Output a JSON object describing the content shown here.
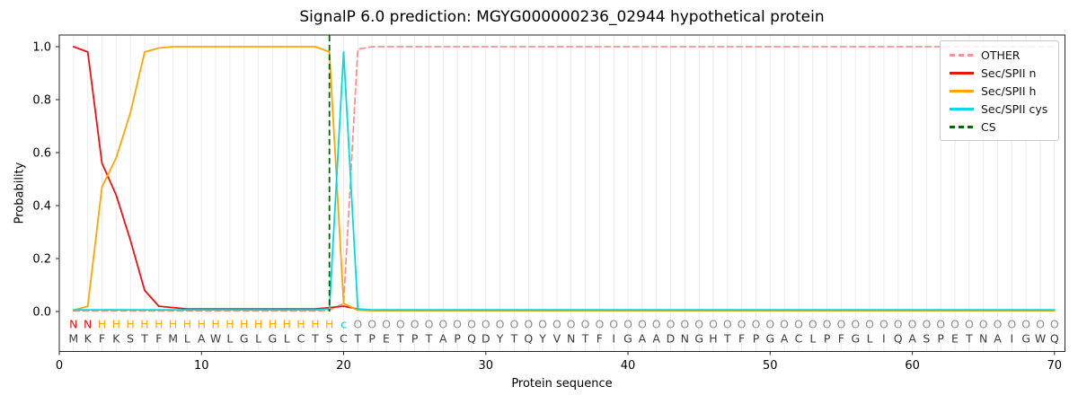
{
  "title": "SignalP 6.0 prediction: MGYG000000236_02944 hypothetical protein",
  "x_axis": {
    "label": "Protein sequence",
    "ticks": [
      0,
      10,
      20,
      30,
      40,
      50,
      60,
      70
    ]
  },
  "y_axis": {
    "label": "Probability",
    "ticks": [
      "0.0",
      "0.2",
      "0.4",
      "0.6",
      "0.8",
      "1.0"
    ]
  },
  "sequence": "MKFKSTFMLAWLGLGLCTSCTPETPTAPQDYTQYVNTFIGAADNGHTFPGACLPFGLIQASPETNAIGWQ",
  "residue_labels": "NNHHHHHHHHHHHHHHHHHcOOOOOOOOOOOOOOOOOOOOOOOOOOOOOOOOOOOOOOOOOOOOOOOOOO",
  "label_colors": {
    "N": "#ee1111",
    "H": "#ffa500",
    "c": "#00cdd6",
    "O": "#8f8f8f"
  },
  "sequence_color": "#3c3c3c",
  "grid_color": "#ebebeb",
  "spine_color": "#262626",
  "chart_data": {
    "type": "line",
    "x_start": 1,
    "x_end": 70,
    "xlim": [
      0,
      70.7
    ],
    "ylim": [
      -0.15,
      1.045
    ],
    "grid": "vertical line at every residue position 1-70",
    "legend_position": "upper right",
    "series": [
      {
        "name": "OTHER",
        "color": "#f59393",
        "style": "dashed",
        "values": [
          0.002,
          0.002,
          0.002,
          0.002,
          0.002,
          0.002,
          0.002,
          0.002,
          0.002,
          0.002,
          0.002,
          0.002,
          0.002,
          0.002,
          0.002,
          0.002,
          0.002,
          0.002,
          0.005,
          0.03,
          0.99,
          1.0,
          1.0,
          1.0,
          1.0,
          1.0,
          1.0,
          1.0,
          1.0,
          1.0,
          1.0,
          1.0,
          1.0,
          1.0,
          1.0,
          1.0,
          1.0,
          1.0,
          1.0,
          1.0,
          1.0,
          1.0,
          1.0,
          1.0,
          1.0,
          1.0,
          1.0,
          1.0,
          1.0,
          1.0,
          1.0,
          1.0,
          1.0,
          1.0,
          1.0,
          1.0,
          1.0,
          1.0,
          1.0,
          1.0,
          1.0,
          1.0,
          1.0,
          1.0,
          1.0,
          1.0,
          1.0,
          1.0,
          1.0,
          1.0
        ]
      },
      {
        "name": "Sec/SPII n",
        "color": "#ee1111",
        "style": "solid",
        "values": [
          1.0,
          0.98,
          0.56,
          0.44,
          0.27,
          0.08,
          0.02,
          0.015,
          0.01,
          0.01,
          0.01,
          0.01,
          0.01,
          0.01,
          0.01,
          0.01,
          0.01,
          0.01,
          0.015,
          0.02,
          0.01,
          0.005,
          0.005,
          0.005,
          0.005,
          0.005,
          0.005,
          0.005,
          0.005,
          0.005,
          0.005,
          0.005,
          0.005,
          0.005,
          0.005,
          0.005,
          0.005,
          0.005,
          0.005,
          0.005,
          0.005,
          0.005,
          0.005,
          0.005,
          0.005,
          0.005,
          0.005,
          0.005,
          0.005,
          0.005,
          0.005,
          0.005,
          0.005,
          0.005,
          0.005,
          0.005,
          0.005,
          0.005,
          0.005,
          0.005,
          0.005,
          0.005,
          0.005,
          0.005,
          0.005,
          0.005,
          0.005,
          0.005,
          0.005,
          0.005
        ]
      },
      {
        "name": "Sec/SPII h",
        "color": "#ffa500",
        "style": "solid",
        "values": [
          0.005,
          0.02,
          0.47,
          0.58,
          0.75,
          0.98,
          0.995,
          1.0,
          1.0,
          1.0,
          1.0,
          1.0,
          1.0,
          1.0,
          1.0,
          1.0,
          1.0,
          1.0,
          0.98,
          0.03,
          0.005,
          0.003,
          0.003,
          0.003,
          0.003,
          0.003,
          0.003,
          0.003,
          0.003,
          0.003,
          0.003,
          0.003,
          0.003,
          0.003,
          0.003,
          0.003,
          0.003,
          0.003,
          0.003,
          0.003,
          0.003,
          0.003,
          0.003,
          0.003,
          0.003,
          0.003,
          0.003,
          0.003,
          0.003,
          0.003,
          0.003,
          0.003,
          0.003,
          0.003,
          0.003,
          0.003,
          0.003,
          0.003,
          0.003,
          0.003,
          0.003,
          0.003,
          0.003,
          0.003,
          0.003,
          0.003,
          0.003,
          0.003,
          0.003,
          0.003
        ]
      },
      {
        "name": "Sec/SPII cys",
        "color": "#00dbe0",
        "style": "solid",
        "values": [
          0.006,
          0.006,
          0.006,
          0.006,
          0.006,
          0.006,
          0.006,
          0.006,
          0.006,
          0.006,
          0.006,
          0.006,
          0.006,
          0.006,
          0.006,
          0.006,
          0.006,
          0.006,
          0.01,
          0.98,
          0.01,
          0.006,
          0.006,
          0.006,
          0.006,
          0.006,
          0.006,
          0.006,
          0.006,
          0.006,
          0.006,
          0.006,
          0.006,
          0.006,
          0.006,
          0.006,
          0.006,
          0.006,
          0.006,
          0.006,
          0.006,
          0.006,
          0.006,
          0.006,
          0.006,
          0.006,
          0.006,
          0.006,
          0.006,
          0.006,
          0.006,
          0.006,
          0.006,
          0.006,
          0.006,
          0.006,
          0.006,
          0.006,
          0.006,
          0.006,
          0.006,
          0.006,
          0.006,
          0.006,
          0.006,
          0.006,
          0.006,
          0.006,
          0.006,
          0.006
        ]
      }
    ],
    "cs_marker": {
      "name": "CS",
      "color": "#006400",
      "style": "dashed",
      "position": 19
    }
  }
}
